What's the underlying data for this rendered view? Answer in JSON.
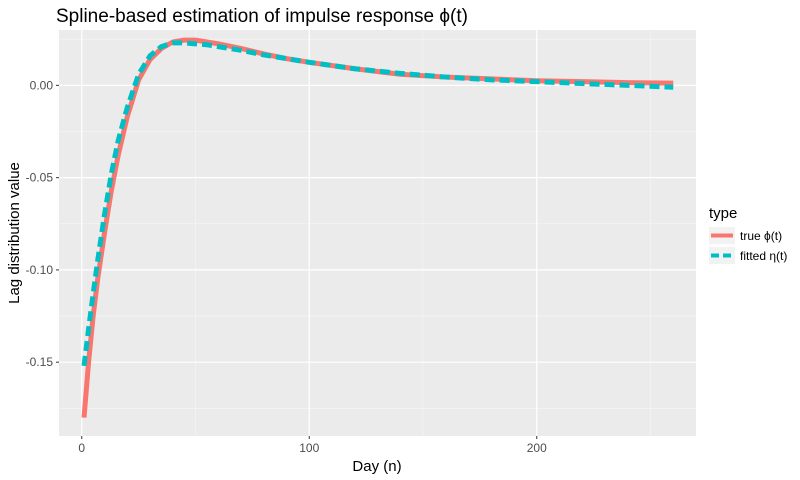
{
  "chart_data": {
    "type": "line",
    "title": "Spline-based estimation of impulse response ϕ(t)",
    "xlabel": "Day (n)",
    "ylabel": "Lag distribution value",
    "xlim": [
      -10,
      270
    ],
    "ylim": [
      -0.19,
      0.03
    ],
    "x_ticks": [
      0,
      100,
      200
    ],
    "x_tick_labels": [
      "0",
      "100",
      "200"
    ],
    "y_ticks": [
      -0.15,
      -0.1,
      -0.05,
      0.0
    ],
    "y_tick_labels": [
      "-0.15",
      "-0.10",
      "-0.05",
      "0.00"
    ],
    "grid": true,
    "legend": {
      "title": "type",
      "position": "right"
    },
    "series": [
      {
        "name": "true ϕ(t)",
        "color": "#F8766D",
        "dash": "solid",
        "x": [
          1,
          3,
          5,
          7,
          10,
          13,
          16,
          20,
          25,
          30,
          35,
          40,
          45,
          50,
          55,
          60,
          70,
          80,
          90,
          100,
          120,
          140,
          160,
          180,
          200,
          220,
          240,
          260
        ],
        "y": [
          -0.18,
          -0.15,
          -0.125,
          -0.105,
          -0.08,
          -0.057,
          -0.038,
          -0.017,
          0.003,
          0.014,
          0.02,
          0.0235,
          0.0245,
          0.0245,
          0.0235,
          0.0225,
          0.02,
          0.017,
          0.0145,
          0.0125,
          0.009,
          0.006,
          0.0045,
          0.0035,
          0.0025,
          0.002,
          0.0015,
          0.0012
        ]
      },
      {
        "name": "fitted η(t)",
        "color": "#00BFC4",
        "dash": "dashed",
        "x": [
          1,
          3,
          5,
          7,
          10,
          13,
          16,
          20,
          25,
          30,
          35,
          40,
          45,
          50,
          55,
          60,
          70,
          80,
          90,
          100,
          120,
          140,
          160,
          180,
          200,
          220,
          240,
          260
        ],
        "y": [
          -0.152,
          -0.132,
          -0.113,
          -0.095,
          -0.07,
          -0.048,
          -0.03,
          -0.012,
          0.006,
          0.016,
          0.021,
          0.023,
          0.023,
          0.0225,
          0.022,
          0.021,
          0.019,
          0.0165,
          0.0145,
          0.0125,
          0.009,
          0.0065,
          0.0045,
          0.003,
          0.002,
          0.001,
          0.0,
          -0.001
        ]
      }
    ]
  }
}
